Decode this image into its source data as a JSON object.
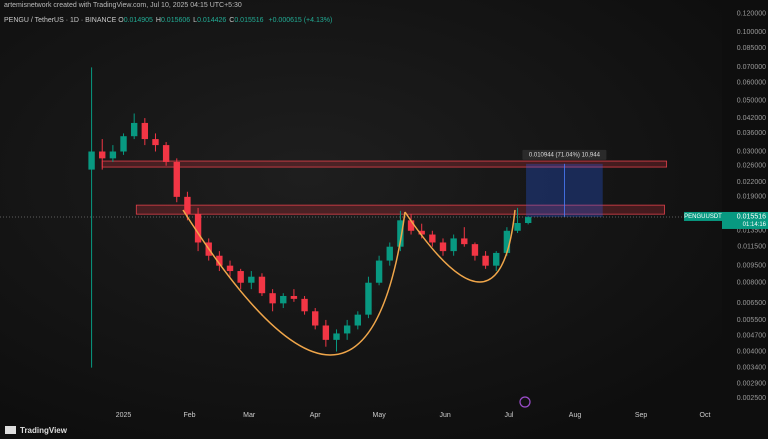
{
  "header": {
    "credit": "artemisnetwork created with TradingView.com, Jul 10, 2025 04:15 UTC+5:30",
    "symbol": "PENGU / TetherUS · 1D · BINANCE",
    "ohlc": [
      {
        "k": "O",
        "v": "0.014905"
      },
      {
        "k": "H",
        "v": "0.015606"
      },
      {
        "k": "L",
        "v": "0.014426"
      },
      {
        "k": "C",
        "v": "0.015516"
      }
    ],
    "change": "+0.000615 (+4.13%)"
  },
  "footer": {
    "brand": "TradingView"
  },
  "chart_data": {
    "type": "candlestick",
    "log_scale": true,
    "grid": false,
    "up_color": "#089981",
    "down_color": "#f23645",
    "x": [
      "2024-12-17",
      "2024-12-22",
      "2024-12-27",
      "2025-01-01",
      "2025-01-06",
      "2025-01-11",
      "2025-01-16",
      "2025-01-21",
      "2025-01-26",
      "2025-01-31",
      "2025-02-05",
      "2025-02-10",
      "2025-02-15",
      "2025-02-20",
      "2025-02-25",
      "2025-03-02",
      "2025-03-07",
      "2025-03-12",
      "2025-03-17",
      "2025-03-22",
      "2025-03-27",
      "2025-04-01",
      "2025-04-06",
      "2025-04-11",
      "2025-04-16",
      "2025-04-21",
      "2025-04-26",
      "2025-05-01",
      "2025-05-06",
      "2025-05-11",
      "2025-05-16",
      "2025-05-21",
      "2025-05-26",
      "2025-05-31",
      "2025-06-05",
      "2025-06-10",
      "2025-06-15",
      "2025-06-20",
      "2025-06-25",
      "2025-06-30",
      "2025-07-05",
      "2025-07-10"
    ],
    "open": [
      0.025,
      0.03,
      0.028,
      0.03,
      0.035,
      0.04,
      0.034,
      0.032,
      0.027,
      0.019,
      0.016,
      0.012,
      0.0105,
      0.0095,
      0.009,
      0.008,
      0.0085,
      0.0072,
      0.0065,
      0.007,
      0.0068,
      0.006,
      0.0052,
      0.0045,
      0.0048,
      0.0052,
      0.0058,
      0.008,
      0.01,
      0.0115,
      0.015,
      0.0135,
      0.013,
      0.012,
      0.011,
      0.0125,
      0.0118,
      0.0105,
      0.0095,
      0.0108,
      0.0135,
      0.0146
    ],
    "high": [
      0.07,
      0.034,
      0.032,
      0.036,
      0.044,
      0.042,
      0.036,
      0.033,
      0.028,
      0.02,
      0.017,
      0.0125,
      0.011,
      0.01,
      0.0092,
      0.009,
      0.0088,
      0.0075,
      0.0072,
      0.0075,
      0.007,
      0.0062,
      0.0055,
      0.005,
      0.0055,
      0.006,
      0.0085,
      0.0105,
      0.012,
      0.0165,
      0.016,
      0.0145,
      0.0135,
      0.0125,
      0.013,
      0.014,
      0.012,
      0.011,
      0.011,
      0.014,
      0.017,
      0.0156
    ],
    "low": [
      0.0034,
      0.025,
      0.027,
      0.029,
      0.034,
      0.032,
      0.03,
      0.026,
      0.018,
      0.015,
      0.011,
      0.01,
      0.009,
      0.0085,
      0.0075,
      0.0075,
      0.007,
      0.006,
      0.0062,
      0.0066,
      0.0058,
      0.005,
      0.0042,
      0.004,
      0.0045,
      0.005,
      0.0056,
      0.0078,
      0.0095,
      0.011,
      0.013,
      0.0125,
      0.0115,
      0.0105,
      0.0105,
      0.0115,
      0.01,
      0.0092,
      0.009,
      0.0105,
      0.0132,
      0.0144
    ],
    "close": [
      0.03,
      0.028,
      0.03,
      0.035,
      0.04,
      0.034,
      0.032,
      0.027,
      0.019,
      0.016,
      0.012,
      0.0105,
      0.0095,
      0.009,
      0.008,
      0.0085,
      0.0072,
      0.0065,
      0.007,
      0.0068,
      0.006,
      0.0052,
      0.0045,
      0.0048,
      0.0052,
      0.0058,
      0.008,
      0.01,
      0.0115,
      0.015,
      0.0135,
      0.013,
      0.012,
      0.011,
      0.0125,
      0.0118,
      0.0105,
      0.0095,
      0.0108,
      0.0135,
      0.0146,
      0.0155
    ],
    "xlim": [
      "2024-11-04",
      "2025-10-09"
    ],
    "xticks": [
      {
        "value": "2025-01-01",
        "label": "2025"
      },
      {
        "value": "2025-02-01",
        "label": "Feb"
      },
      {
        "value": "2025-03-01",
        "label": "Mar"
      },
      {
        "value": "2025-04-01",
        "label": "Apr"
      },
      {
        "value": "2025-05-01",
        "label": "May"
      },
      {
        "value": "2025-06-01",
        "label": "Jun"
      },
      {
        "value": "2025-07-01",
        "label": "Jul"
      },
      {
        "value": "2025-08-01",
        "label": "Aug"
      },
      {
        "value": "2025-09-01",
        "label": "Sep"
      },
      {
        "value": "2025-10-01",
        "label": "Oct"
      }
    ],
    "ylim": [
      0.00222,
      0.138
    ],
    "yticks": [
      {
        "value": 0.12,
        "label": "0.120000"
      },
      {
        "value": 0.1,
        "label": "0.100000"
      },
      {
        "value": 0.085,
        "label": "0.085000"
      },
      {
        "value": 0.07,
        "label": "0.070000"
      },
      {
        "value": 0.06,
        "label": "0.060000"
      },
      {
        "value": 0.05,
        "label": "0.050000"
      },
      {
        "value": 0.042,
        "label": "0.042000"
      },
      {
        "value": 0.036,
        "label": "0.036000"
      },
      {
        "value": 0.03,
        "label": "0.030000"
      },
      {
        "value": 0.026,
        "label": "0.026000"
      },
      {
        "value": 0.022,
        "label": "0.022000"
      },
      {
        "value": 0.019,
        "label": "0.019000"
      },
      {
        "value": 0.0135,
        "label": "0.013500"
      },
      {
        "value": 0.0115,
        "label": "0.011500"
      },
      {
        "value": 0.0095,
        "label": "0.009500"
      },
      {
        "value": 0.008,
        "label": "0.008000"
      },
      {
        "value": 0.0065,
        "label": "0.006500"
      },
      {
        "value": 0.0055,
        "label": "0.005500"
      },
      {
        "value": 0.0047,
        "label": "0.004700"
      },
      {
        "value": 0.004,
        "label": "0.004000"
      },
      {
        "value": 0.0034,
        "label": "0.003400"
      },
      {
        "value": 0.0029,
        "label": "0.002900"
      },
      {
        "value": 0.0025,
        "label": "0.002500"
      }
    ],
    "zones": [
      {
        "start": "2024-12-22",
        "end": "2025-09-13",
        "low": 0.02565,
        "high": 0.02725
      },
      {
        "start": "2025-01-07",
        "end": "2025-09-12",
        "low": 0.01596,
        "high": 0.01748
      }
    ],
    "measure": {
      "start": "2025-07-09",
      "end": "2025-08-14",
      "low": 0.0155,
      "high": 0.0265,
      "label": "0.010944 (71.04%) 10,944"
    },
    "last_price": 0.015516,
    "last_symbol": "PENGUUSDT",
    "countdown": "01:14:16"
  }
}
